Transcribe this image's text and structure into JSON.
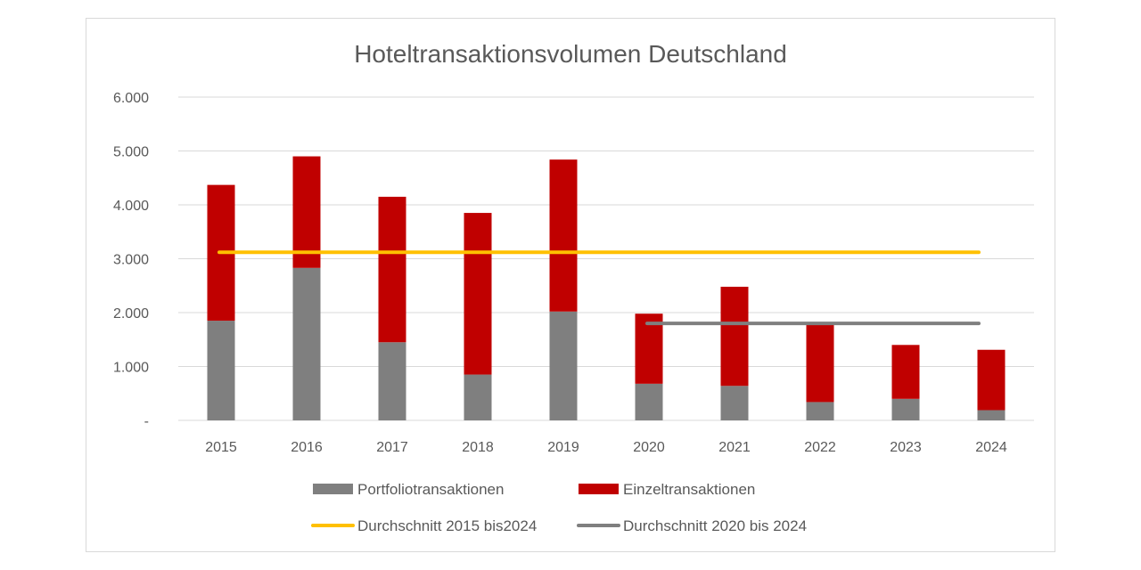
{
  "chart_data": {
    "type": "bar",
    "stacked": true,
    "title": "Hoteltransaktionsvolumen Deutschland",
    "xlabel": "",
    "ylabel": "",
    "categories": [
      "2015",
      "2016",
      "2017",
      "2018",
      "2019",
      "2020",
      "2021",
      "2022",
      "2023",
      "2024"
    ],
    "ylim": [
      0,
      6000
    ],
    "yticks": [
      0,
      1000,
      2000,
      3000,
      4000,
      5000,
      6000
    ],
    "ytick_labels": [
      "-",
      "1.000",
      "2.000",
      "3.000",
      "4.000",
      "5.000",
      "6.000"
    ],
    "grid": true,
    "legend_position": "bottom",
    "series": [
      {
        "name": "Portfoliotransaktionen",
        "color": "#7f7f7f",
        "values": [
          1850,
          2830,
          1450,
          850,
          2020,
          680,
          640,
          340,
          400,
          190
        ]
      },
      {
        "name": "Einzeltransaktionen",
        "color": "#c00000",
        "values": [
          2520,
          2070,
          2700,
          3000,
          2820,
          1300,
          1840,
          1450,
          1000,
          1120
        ]
      }
    ],
    "reference_lines": [
      {
        "name": "Durchschnitt 2015 bis2024",
        "color": "#ffc000",
        "value": 3120,
        "from": "2015",
        "to": "2024"
      },
      {
        "name": "Durchschnitt 2020 bis 2024",
        "color": "#7f7f7f",
        "value": 1800,
        "from": "2020",
        "to": "2024"
      }
    ]
  }
}
